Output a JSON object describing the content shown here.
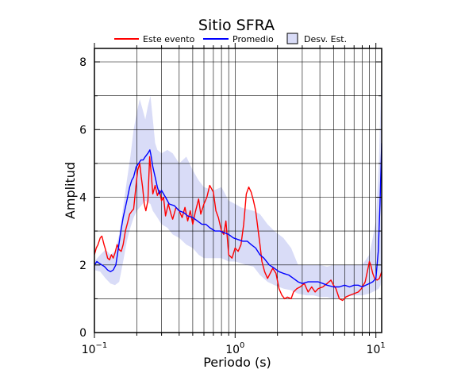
{
  "chart_data": {
    "type": "line",
    "title": "Sitio SFRA",
    "xlabel": "Periodo (s)",
    "ylabel": "Amplitud",
    "xscale": "log",
    "xlim": [
      0.1,
      11
    ],
    "ylim": [
      0,
      8.4
    ],
    "x_ticks": [
      {
        "value": 0.1,
        "base": "10",
        "exp": "−1"
      },
      {
        "value": 1,
        "base": "10",
        "exp": "0"
      },
      {
        "value": 10,
        "base": "10",
        "exp": "1"
      }
    ],
    "y_ticks": [
      0,
      2,
      4,
      6,
      8
    ],
    "grid": true,
    "legend_position": "top",
    "legend": {
      "event": "Este evento",
      "mean": "Promedio",
      "std": "Desv. Est."
    },
    "colors": {
      "event": "#ff0000",
      "mean": "#0000ff",
      "band": "#d9dcf7",
      "band_edge": "#6c71b6"
    },
    "series": [
      {
        "name": "Este evento",
        "points": [
          [
            0.1,
            2.3
          ],
          [
            0.103,
            2.5
          ],
          [
            0.106,
            2.6
          ],
          [
            0.11,
            2.8
          ],
          [
            0.113,
            2.85
          ],
          [
            0.117,
            2.6
          ],
          [
            0.12,
            2.45
          ],
          [
            0.124,
            2.2
          ],
          [
            0.128,
            2.15
          ],
          [
            0.132,
            2.3
          ],
          [
            0.136,
            2.2
          ],
          [
            0.14,
            2.35
          ],
          [
            0.145,
            2.6
          ],
          [
            0.15,
            2.45
          ],
          [
            0.155,
            2.4
          ],
          [
            0.16,
            2.6
          ],
          [
            0.166,
            3.0
          ],
          [
            0.172,
            3.25
          ],
          [
            0.178,
            3.5
          ],
          [
            0.185,
            3.6
          ],
          [
            0.19,
            3.65
          ],
          [
            0.197,
            4.3
          ],
          [
            0.203,
            4.8
          ],
          [
            0.21,
            5.0
          ],
          [
            0.215,
            4.6
          ],
          [
            0.22,
            4.3
          ],
          [
            0.226,
            3.8
          ],
          [
            0.232,
            3.6
          ],
          [
            0.24,
            3.9
          ],
          [
            0.247,
            5.2
          ],
          [
            0.252,
            4.8
          ],
          [
            0.26,
            4.1
          ],
          [
            0.27,
            4.35
          ],
          [
            0.28,
            4.05
          ],
          [
            0.29,
            4.2
          ],
          [
            0.3,
            3.9
          ],
          [
            0.31,
            4.0
          ],
          [
            0.32,
            3.45
          ],
          [
            0.335,
            3.8
          ],
          [
            0.35,
            3.5
          ],
          [
            0.36,
            3.35
          ],
          [
            0.38,
            3.7
          ],
          [
            0.4,
            3.6
          ],
          [
            0.42,
            3.4
          ],
          [
            0.44,
            3.7
          ],
          [
            0.46,
            3.3
          ],
          [
            0.48,
            3.6
          ],
          [
            0.5,
            3.2
          ],
          [
            0.52,
            3.55
          ],
          [
            0.55,
            3.95
          ],
          [
            0.57,
            3.5
          ],
          [
            0.6,
            3.8
          ],
          [
            0.63,
            4.0
          ],
          [
            0.66,
            4.35
          ],
          [
            0.7,
            4.15
          ],
          [
            0.73,
            3.6
          ],
          [
            0.76,
            3.4
          ],
          [
            0.8,
            3.0
          ],
          [
            0.83,
            2.9
          ],
          [
            0.86,
            3.3
          ],
          [
            0.9,
            2.3
          ],
          [
            0.95,
            2.2
          ],
          [
            1.0,
            2.5
          ],
          [
            1.05,
            2.4
          ],
          [
            1.1,
            2.6
          ],
          [
            1.15,
            3.2
          ],
          [
            1.2,
            4.1
          ],
          [
            1.25,
            4.3
          ],
          [
            1.3,
            4.15
          ],
          [
            1.35,
            3.9
          ],
          [
            1.4,
            3.6
          ],
          [
            1.5,
            2.6
          ],
          [
            1.55,
            2.1
          ],
          [
            1.62,
            1.8
          ],
          [
            1.7,
            1.6
          ],
          [
            1.75,
            1.7
          ],
          [
            1.85,
            1.9
          ],
          [
            1.95,
            1.75
          ],
          [
            2.05,
            1.3
          ],
          [
            2.15,
            1.1
          ],
          [
            2.25,
            1.0
          ],
          [
            2.35,
            1.05
          ],
          [
            2.5,
            1.0
          ],
          [
            2.6,
            1.2
          ],
          [
            2.75,
            1.3
          ],
          [
            2.9,
            1.35
          ],
          [
            3.1,
            1.45
          ],
          [
            3.3,
            1.2
          ],
          [
            3.5,
            1.35
          ],
          [
            3.7,
            1.2
          ],
          [
            3.9,
            1.3
          ],
          [
            4.2,
            1.35
          ],
          [
            4.5,
            1.45
          ],
          [
            4.8,
            1.55
          ],
          [
            5.0,
            1.4
          ],
          [
            5.2,
            1.3
          ],
          [
            5.5,
            1.0
          ],
          [
            5.8,
            0.95
          ],
          [
            6.1,
            1.05
          ],
          [
            6.5,
            1.1
          ],
          [
            7.0,
            1.15
          ],
          [
            7.5,
            1.2
          ],
          [
            7.9,
            1.3
          ],
          [
            8.4,
            1.5
          ],
          [
            8.8,
            1.9
          ],
          [
            9.0,
            2.1
          ],
          [
            9.2,
            2.0
          ],
          [
            9.5,
            1.75
          ],
          [
            9.8,
            1.6
          ],
          [
            10.2,
            1.55
          ],
          [
            10.6,
            1.6
          ],
          [
            11.0,
            1.8
          ]
        ]
      },
      {
        "name": "Promedio",
        "points": [
          [
            0.1,
            2.0
          ],
          [
            0.104,
            2.1
          ],
          [
            0.108,
            2.05
          ],
          [
            0.113,
            2.0
          ],
          [
            0.118,
            1.95
          ],
          [
            0.124,
            1.85
          ],
          [
            0.13,
            1.8
          ],
          [
            0.136,
            1.85
          ],
          [
            0.142,
            2.0
          ],
          [
            0.148,
            2.5
          ],
          [
            0.154,
            3.0
          ],
          [
            0.16,
            3.4
          ],
          [
            0.166,
            3.7
          ],
          [
            0.172,
            4.0
          ],
          [
            0.178,
            4.3
          ],
          [
            0.184,
            4.5
          ],
          [
            0.19,
            4.6
          ],
          [
            0.198,
            4.9
          ],
          [
            0.206,
            5.0
          ],
          [
            0.214,
            5.1
          ],
          [
            0.222,
            5.1
          ],
          [
            0.23,
            5.2
          ],
          [
            0.24,
            5.3
          ],
          [
            0.248,
            5.4
          ],
          [
            0.252,
            5.25
          ],
          [
            0.26,
            4.9
          ],
          [
            0.27,
            4.6
          ],
          [
            0.28,
            4.3
          ],
          [
            0.29,
            4.1
          ],
          [
            0.3,
            4.2
          ],
          [
            0.32,
            4.0
          ],
          [
            0.34,
            3.8
          ],
          [
            0.37,
            3.75
          ],
          [
            0.4,
            3.6
          ],
          [
            0.43,
            3.55
          ],
          [
            0.46,
            3.45
          ],
          [
            0.5,
            3.4
          ],
          [
            0.54,
            3.3
          ],
          [
            0.58,
            3.2
          ],
          [
            0.62,
            3.2
          ],
          [
            0.66,
            3.1
          ],
          [
            0.72,
            3.0
          ],
          [
            0.78,
            3.0
          ],
          [
            0.84,
            2.95
          ],
          [
            0.9,
            2.9
          ],
          [
            0.97,
            2.8
          ],
          [
            1.05,
            2.75
          ],
          [
            1.13,
            2.7
          ],
          [
            1.22,
            2.7
          ],
          [
            1.3,
            2.6
          ],
          [
            1.4,
            2.5
          ],
          [
            1.5,
            2.3
          ],
          [
            1.6,
            2.2
          ],
          [
            1.75,
            2.0
          ],
          [
            1.9,
            1.9
          ],
          [
            2.05,
            1.8
          ],
          [
            2.2,
            1.75
          ],
          [
            2.4,
            1.7
          ],
          [
            2.6,
            1.6
          ],
          [
            2.8,
            1.5
          ],
          [
            3.0,
            1.45
          ],
          [
            3.3,
            1.5
          ],
          [
            3.6,
            1.5
          ],
          [
            3.9,
            1.5
          ],
          [
            4.2,
            1.45
          ],
          [
            4.5,
            1.4
          ],
          [
            5.0,
            1.35
          ],
          [
            5.5,
            1.35
          ],
          [
            6.0,
            1.4
          ],
          [
            6.5,
            1.35
          ],
          [
            7.0,
            1.4
          ],
          [
            7.5,
            1.4
          ],
          [
            8.0,
            1.35
          ],
          [
            8.5,
            1.4
          ],
          [
            9.0,
            1.45
          ],
          [
            9.5,
            1.5
          ],
          [
            10.0,
            1.6
          ],
          [
            10.4,
            2.4
          ],
          [
            10.7,
            3.8
          ],
          [
            11.0,
            5.6
          ]
        ]
      }
    ],
    "std_band": {
      "name": "Desv. Est.",
      "upper": [
        [
          0.1,
          2.1
        ],
        [
          0.11,
          2.3
        ],
        [
          0.12,
          2.45
        ],
        [
          0.13,
          2.3
        ],
        [
          0.14,
          2.4
        ],
        [
          0.15,
          2.9
        ],
        [
          0.16,
          3.7
        ],
        [
          0.17,
          4.5
        ],
        [
          0.18,
          5.2
        ],
        [
          0.19,
          6.0
        ],
        [
          0.2,
          6.5
        ],
        [
          0.21,
          6.9
        ],
        [
          0.22,
          6.6
        ],
        [
          0.23,
          6.3
        ],
        [
          0.24,
          6.7
        ],
        [
          0.25,
          7.0
        ],
        [
          0.26,
          6.3
        ],
        [
          0.27,
          5.6
        ],
        [
          0.28,
          5.4
        ],
        [
          0.3,
          5.3
        ],
        [
          0.33,
          5.4
        ],
        [
          0.36,
          5.3
        ],
        [
          0.4,
          5.0
        ],
        [
          0.45,
          5.2
        ],
        [
          0.5,
          4.8
        ],
        [
          0.55,
          4.5
        ],
        [
          0.6,
          4.3
        ],
        [
          0.7,
          4.2
        ],
        [
          0.8,
          4.3
        ],
        [
          0.9,
          3.9
        ],
        [
          1.0,
          3.8
        ],
        [
          1.1,
          3.7
        ],
        [
          1.2,
          3.65
        ],
        [
          1.35,
          3.6
        ],
        [
          1.5,
          3.5
        ],
        [
          1.7,
          3.2
        ],
        [
          1.9,
          3.0
        ],
        [
          2.2,
          2.8
        ],
        [
          2.5,
          2.5
        ],
        [
          2.8,
          2.0
        ],
        [
          3.2,
          2.0
        ],
        [
          3.6,
          2.0
        ],
        [
          4.0,
          2.0
        ],
        [
          4.5,
          1.95
        ],
        [
          5.0,
          2.0
        ],
        [
          6.0,
          2.0
        ],
        [
          7.0,
          2.0
        ],
        [
          8.0,
          2.0
        ],
        [
          9.0,
          2.3
        ],
        [
          9.5,
          2.8
        ],
        [
          10.0,
          3.3
        ],
        [
          10.5,
          5.0
        ],
        [
          10.8,
          6.8
        ],
        [
          11.0,
          8.3
        ]
      ],
      "lower": [
        [
          0.1,
          1.85
        ],
        [
          0.11,
          1.8
        ],
        [
          0.12,
          1.6
        ],
        [
          0.13,
          1.45
        ],
        [
          0.14,
          1.4
        ],
        [
          0.15,
          1.5
        ],
        [
          0.16,
          2.1
        ],
        [
          0.17,
          2.7
        ],
        [
          0.18,
          3.1
        ],
        [
          0.19,
          3.4
        ],
        [
          0.2,
          3.6
        ],
        [
          0.21,
          3.7
        ],
        [
          0.22,
          3.8
        ],
        [
          0.23,
          3.9
        ],
        [
          0.24,
          3.85
        ],
        [
          0.25,
          3.8
        ],
        [
          0.26,
          3.6
        ],
        [
          0.28,
          3.4
        ],
        [
          0.3,
          3.2
        ],
        [
          0.33,
          3.1
        ],
        [
          0.36,
          2.9
        ],
        [
          0.4,
          2.8
        ],
        [
          0.45,
          2.6
        ],
        [
          0.5,
          2.5
        ],
        [
          0.55,
          2.3
        ],
        [
          0.6,
          2.2
        ],
        [
          0.7,
          2.2
        ],
        [
          0.8,
          2.2
        ],
        [
          0.9,
          2.1
        ],
        [
          1.0,
          2.1
        ],
        [
          1.1,
          2.05
        ],
        [
          1.2,
          2.0
        ],
        [
          1.35,
          1.95
        ],
        [
          1.5,
          1.7
        ],
        [
          1.7,
          1.5
        ],
        [
          1.9,
          1.4
        ],
        [
          2.2,
          1.3
        ],
        [
          2.5,
          1.25
        ],
        [
          2.8,
          1.15
        ],
        [
          3.2,
          1.1
        ],
        [
          3.6,
          1.1
        ],
        [
          4.0,
          1.05
        ],
        [
          4.5,
          1.05
        ],
        [
          5.0,
          1.0
        ],
        [
          6.0,
          1.05
        ],
        [
          7.0,
          1.1
        ],
        [
          8.0,
          1.1
        ],
        [
          9.0,
          1.15
        ],
        [
          9.5,
          1.2
        ],
        [
          10.0,
          1.25
        ],
        [
          10.5,
          1.3
        ],
        [
          10.8,
          1.4
        ],
        [
          11.0,
          1.7
        ]
      ]
    }
  }
}
